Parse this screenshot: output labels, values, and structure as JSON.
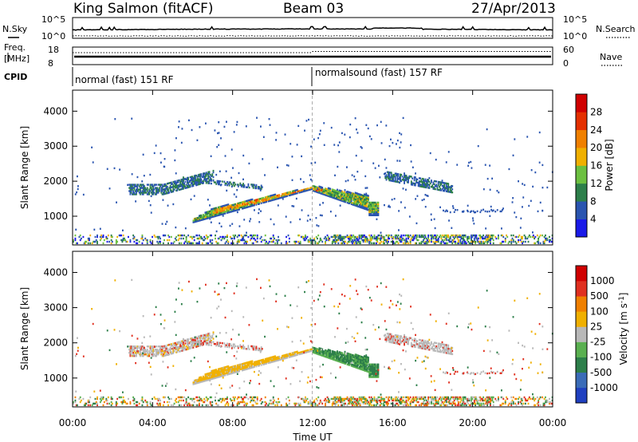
{
  "header": {
    "station": "King Salmon (fitACF)",
    "beam": "Beam 03",
    "date": "27/Apr/2013"
  },
  "strips": {
    "nsky_label": "N.Sky",
    "nsearch_label": "N.Search",
    "nsky_ticks": [
      "10^5",
      "10^0"
    ],
    "nsearch_ticks": [
      "10^5",
      "10^0"
    ],
    "freq_label_1": "Freq.",
    "freq_label_2": "[MHz]",
    "freq_ticks": [
      "18",
      "8"
    ],
    "nave_label": "Nave",
    "nave_ticks": [
      "60",
      "0"
    ],
    "cpid_label": "CPID",
    "mode_1": "normal (fast) 151 RF",
    "mode_2": "normalsound (fast) 157 RF"
  },
  "chart_data": [
    {
      "type": "heatmap",
      "panel": "power",
      "xlabel": "",
      "ylabel": "Slant Range [km]",
      "x_range_hours": [
        0,
        24
      ],
      "ylim": [
        180,
        4600
      ],
      "y_ticks": [
        1000,
        2000,
        3000,
        4000
      ],
      "colorbar": {
        "label": "Power [dB]",
        "ticks": [
          "4",
          "8",
          "12",
          "16",
          "20",
          "24",
          "28"
        ],
        "colors": [
          "#1a1ae8",
          "#2a55b0",
          "#2d7f4a",
          "#6cc040",
          "#f0b000",
          "#f08000",
          "#e43000",
          "#d00000"
        ]
      },
      "features": [
        {
          "name": "main_echo",
          "t_hours": [
            6.0,
            15.3
          ],
          "range_km": [
            800,
            1900
          ]
        },
        {
          "name": "upper_echo_morning",
          "t_hours": [
            2.8,
            7.0
          ],
          "range_km": [
            1500,
            2400
          ]
        },
        {
          "name": "upper_echo_evening",
          "t_hours": [
            15.5,
            19.0
          ],
          "range_km": [
            1700,
            2300
          ]
        },
        {
          "name": "ground_scatter_near",
          "t_hours": [
            0,
            24
          ],
          "range_km": [
            180,
            450
          ]
        }
      ]
    },
    {
      "type": "heatmap",
      "panel": "velocity",
      "xlabel": "Time UT",
      "ylabel": "Slant Range [km]",
      "x_range_hours": [
        0,
        24
      ],
      "x_ticks": [
        "00:00",
        "04:00",
        "08:00",
        "12:00",
        "16:00",
        "20:00",
        "00:00"
      ],
      "ylim": [
        180,
        4600
      ],
      "y_ticks": [
        1000,
        2000,
        3000,
        4000
      ],
      "colorbar": {
        "label": "Velocity [m s^-1]",
        "ticks": [
          "1000",
          "500",
          "100",
          "25",
          "-25",
          "-100",
          "-500",
          "-1000"
        ],
        "colors": [
          "#2040c0",
          "#3b6cb8",
          "#2d7f4a",
          "#5ab050",
          "#b8b8b8",
          "#f0b000",
          "#f08000",
          "#e03020",
          "#d00000"
        ]
      }
    }
  ]
}
